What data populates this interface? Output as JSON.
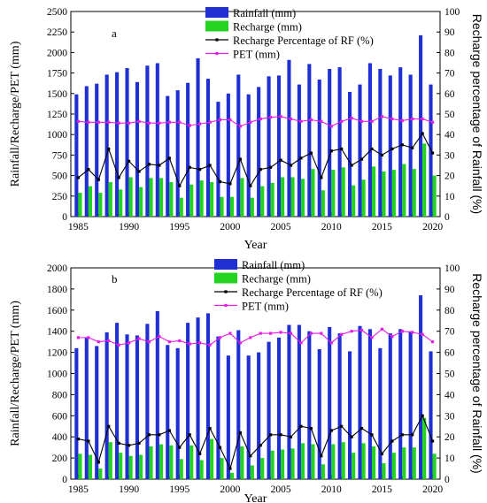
{
  "chart_data": [
    {
      "panel_label": "a",
      "type": "bar+line",
      "x": [
        1985,
        1986,
        1987,
        1988,
        1989,
        1990,
        1991,
        1992,
        1993,
        1994,
        1995,
        1996,
        1997,
        1998,
        1999,
        2000,
        2001,
        2002,
        2003,
        2004,
        2005,
        2006,
        2007,
        2008,
        2009,
        2010,
        2011,
        2012,
        2013,
        2014,
        2015,
        2016,
        2017,
        2018,
        2019,
        2020
      ],
      "xlabel": "Year",
      "ylabel": "Rainfall/Recharge/PET (mm)",
      "ylabel_right": "Recharge percentage of Rainfall (%)",
      "ylim": [
        0,
        2500
      ],
      "ytick_step": 250,
      "ylim_right": [
        0,
        100
      ],
      "ytick_step_right": 10,
      "xticks": [
        1985,
        1990,
        1995,
        2000,
        2005,
        2010,
        2015,
        2020
      ],
      "legend_position": "top-center",
      "series": [
        {
          "name": "Rainfall (mm)",
          "kind": "bar",
          "axis": "left",
          "color": "#1f2fd4",
          "values": [
            1490,
            1590,
            1620,
            1730,
            1760,
            1810,
            1640,
            1840,
            1870,
            1470,
            1540,
            1630,
            1930,
            1680,
            1400,
            1500,
            1730,
            1490,
            1580,
            1710,
            1720,
            1910,
            1610,
            1860,
            1670,
            1800,
            1820,
            1520,
            1610,
            1870,
            1800,
            1720,
            1820,
            1730,
            2210,
            1610
          ]
        },
        {
          "name": "Recharge (mm)",
          "kind": "bar",
          "axis": "left",
          "color": "#22d41f",
          "values": [
            290,
            370,
            290,
            420,
            330,
            480,
            360,
            470,
            470,
            420,
            230,
            390,
            440,
            420,
            240,
            240,
            470,
            230,
            370,
            410,
            480,
            480,
            460,
            580,
            320,
            570,
            600,
            380,
            450,
            610,
            550,
            570,
            640,
            580,
            890,
            500
          ]
        },
        {
          "name": "Recharge Percentage of RF (%)",
          "kind": "line",
          "axis": "right",
          "color": "#000000",
          "marker": "square",
          "values": [
            19,
            23,
            18,
            33,
            19,
            27,
            22,
            25.5,
            25,
            28.5,
            15,
            24,
            23,
            25,
            17,
            16,
            28,
            15,
            23,
            24,
            27.5,
            25,
            28.5,
            31,
            19,
            32,
            33,
            25,
            28,
            33,
            30,
            33,
            35,
            33.5,
            40.5,
            31
          ]
        },
        {
          "name": "PET (mm)",
          "kind": "line",
          "axis": "left",
          "color": "#e41ee4",
          "marker": "square",
          "values": [
            1160,
            1150,
            1150,
            1150,
            1140,
            1140,
            1160,
            1140,
            1140,
            1150,
            1150,
            1110,
            1130,
            1150,
            1180,
            1180,
            1100,
            1150,
            1190,
            1210,
            1220,
            1190,
            1160,
            1180,
            1160,
            1100,
            1160,
            1200,
            1160,
            1160,
            1220,
            1190,
            1170,
            1190,
            1190,
            1150
          ]
        }
      ]
    },
    {
      "panel_label": "b",
      "type": "bar+line",
      "x": [
        1985,
        1986,
        1987,
        1988,
        1989,
        1990,
        1991,
        1992,
        1993,
        1994,
        1995,
        1996,
        1997,
        1998,
        1999,
        2000,
        2001,
        2002,
        2003,
        2004,
        2005,
        2006,
        2007,
        2008,
        2009,
        2010,
        2011,
        2012,
        2013,
        2014,
        2015,
        2016,
        2017,
        2018,
        2019,
        2020
      ],
      "xlabel": "Year",
      "ylabel": "Rainfall/Recharge/PET (mm)",
      "ylabel_right": "Recharge percentage of Rainfall (%)",
      "ylim": [
        0,
        2000
      ],
      "ytick_step": 200,
      "ylim_right": [
        0,
        100
      ],
      "ytick_step_right": 10,
      "xticks": [
        1985,
        1990,
        1995,
        2000,
        2005,
        2010,
        2015,
        2020
      ],
      "legend_position": "top-center",
      "series": [
        {
          "name": "Rainfall (mm)",
          "kind": "bar",
          "axis": "left",
          "color": "#1f2fd4",
          "values": [
            1240,
            1340,
            1260,
            1390,
            1480,
            1370,
            1360,
            1470,
            1590,
            1270,
            1240,
            1480,
            1530,
            1570,
            1350,
            1170,
            1410,
            1170,
            1200,
            1300,
            1340,
            1460,
            1460,
            1400,
            1230,
            1440,
            1380,
            1210,
            1450,
            1420,
            1240,
            1380,
            1420,
            1400,
            1740,
            1210
          ]
        },
        {
          "name": "Recharge (mm)",
          "kind": "bar",
          "axis": "left",
          "color": "#22d41f",
          "values": [
            240,
            230,
            100,
            350,
            250,
            220,
            230,
            310,
            330,
            320,
            190,
            320,
            180,
            380,
            200,
            60,
            310,
            130,
            200,
            270,
            280,
            290,
            340,
            330,
            140,
            330,
            350,
            250,
            340,
            310,
            150,
            250,
            300,
            300,
            580,
            240
          ]
        },
        {
          "name": "Recharge Percentage of RF (%)",
          "kind": "line",
          "axis": "right",
          "color": "#000000",
          "marker": "square",
          "values": [
            19,
            18,
            8,
            25,
            17,
            16,
            17,
            21,
            21,
            23,
            15,
            21,
            12,
            24,
            15,
            5,
            22,
            11,
            16,
            21,
            21,
            20,
            25,
            24,
            11,
            23,
            25,
            20,
            24,
            21,
            12,
            18,
            21,
            21,
            30,
            18
          ]
        },
        {
          "name": "PET (mm)",
          "kind": "line",
          "axis": "left",
          "color": "#e41ee4",
          "marker": "square",
          "values": [
            1340,
            1340,
            1300,
            1310,
            1270,
            1290,
            1330,
            1300,
            1350,
            1300,
            1310,
            1280,
            1290,
            1270,
            1340,
            1380,
            1290,
            1340,
            1380,
            1380,
            1390,
            1380,
            1290,
            1380,
            1380,
            1290,
            1370,
            1400,
            1410,
            1340,
            1420,
            1350,
            1400,
            1390,
            1370,
            1300
          ]
        }
      ]
    }
  ]
}
